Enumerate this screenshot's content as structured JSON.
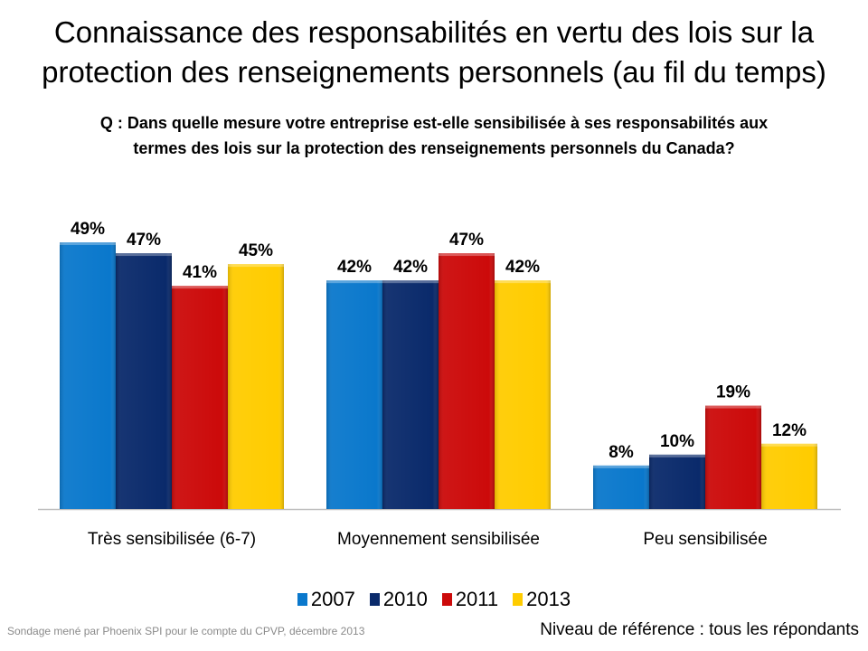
{
  "title_line1": "Connaissance des responsabilités en vertu des lois sur la",
  "title_line2": "protection des renseignements personnels (au fil du temps)",
  "question_line1": "Q : Dans quelle mesure votre entreprise est-elle sensibilisée à ses responsabilités aux",
  "question_line2": "termes des lois sur la protection des renseignements personnels du Canada?",
  "chart_data": {
    "type": "bar",
    "categories": [
      "Très sensibilisée (6-7)",
      "Moyennement sensibilisée",
      "Peu sensibilisée"
    ],
    "series": [
      {
        "name": "2007",
        "values": [
          49,
          42,
          8
        ],
        "color": "#0A78CC"
      },
      {
        "name": "2010",
        "values": [
          47,
          42,
          10
        ],
        "color": "#0A2A6B"
      },
      {
        "name": "2011",
        "values": [
          41,
          47,
          19
        ],
        "color": "#CC0A0A"
      },
      {
        "name": "2013",
        "values": [
          45,
          42,
          12
        ],
        "color": "#FFCC00"
      }
    ],
    "value_suffix": "%",
    "ylim": [
      0,
      50
    ],
    "grid": false,
    "legend_position": "bottom"
  },
  "footer": {
    "source": "Sondage mené par Phoenix SPI pour le compte du CPVP, décembre 2013",
    "base": "Niveau de référence : tous les répondants"
  }
}
